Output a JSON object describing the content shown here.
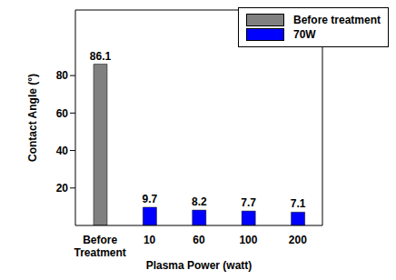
{
  "chart_data": {
    "type": "bar",
    "x_label": "Plasma Power (watt)",
    "y_label": "Contact Angle (°)",
    "categories": [
      "Before Treatment",
      "10",
      "60",
      "100",
      "200"
    ],
    "series": [
      {
        "name": "Before treatment",
        "color": "#808080",
        "values": [
          86.1,
          null,
          null,
          null,
          null
        ]
      },
      {
        "name": "70W",
        "color": "#0000ff",
        "values": [
          null,
          9.7,
          8.2,
          7.7,
          7.1
        ]
      }
    ],
    "ylim": [
      0,
      115
    ],
    "yticks": [
      20,
      40,
      60,
      80
    ],
    "legend": "top-right",
    "data_labels": true,
    "grid": false
  }
}
